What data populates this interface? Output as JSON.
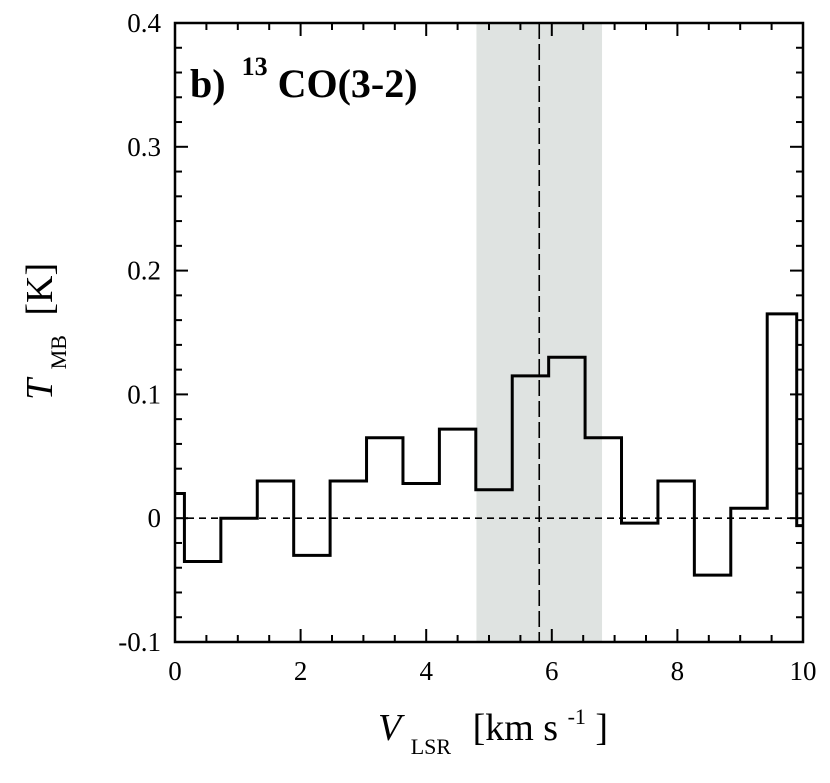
{
  "chart_data": {
    "type": "line",
    "style": "step",
    "panel_label": {
      "prefix": "b)",
      "isotope": "13",
      "molecule": "CO(3-2)"
    },
    "xlabel": {
      "var": "V",
      "sub": "LSR",
      "unit_pre": "[km s",
      "unit_sup": "-1",
      "unit_post": "]"
    },
    "ylabel": {
      "var": "T",
      "sub": "MB",
      "unit": "[K]"
    },
    "xlim": [
      0,
      10
    ],
    "ylim": [
      -0.1,
      0.4
    ],
    "xticks": [
      0,
      2,
      4,
      6,
      8,
      10
    ],
    "xtick_labels": [
      "0",
      "2",
      "4",
      "6",
      "8",
      "10"
    ],
    "yticks": [
      -0.1,
      0,
      0.1,
      0.2,
      0.3,
      0.4
    ],
    "ytick_labels": [
      "-0.1",
      "0",
      "0.1",
      "0.2",
      "0.3",
      "0.4"
    ],
    "x_minor_step": 0.5,
    "y_minor_step": 0.02,
    "shaded_region": {
      "xmin": 4.8,
      "xmax": 6.8,
      "color": "#dfe3e1"
    },
    "vline": {
      "x": 5.8,
      "style": "dashed"
    },
    "hline": {
      "y": 0,
      "style": "dashed"
    },
    "step_edges": [
      0.0,
      0.15,
      0.73,
      1.31,
      1.89,
      2.47,
      3.05,
      3.63,
      4.21,
      4.79,
      5.37,
      5.95,
      6.53,
      7.11,
      7.69,
      8.27,
      8.85,
      9.43,
      9.9,
      10.0
    ],
    "step_values": [
      0.02,
      -0.035,
      0.0,
      0.03,
      -0.03,
      0.03,
      0.065,
      0.028,
      0.072,
      0.023,
      0.115,
      0.13,
      0.065,
      -0.004,
      0.03,
      -0.046,
      0.008,
      0.165,
      -0.006
    ]
  }
}
